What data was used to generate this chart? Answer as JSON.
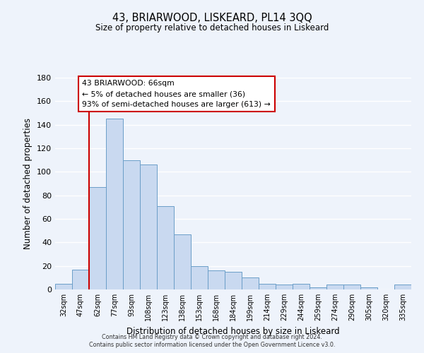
{
  "title": "43, BRIARWOOD, LISKEARD, PL14 3QQ",
  "subtitle": "Size of property relative to detached houses in Liskeard",
  "xlabel": "Distribution of detached houses by size in Liskeard",
  "ylabel": "Number of detached properties",
  "bin_labels": [
    "32sqm",
    "47sqm",
    "62sqm",
    "77sqm",
    "93sqm",
    "108sqm",
    "123sqm",
    "138sqm",
    "153sqm",
    "168sqm",
    "184sqm",
    "199sqm",
    "214sqm",
    "229sqm",
    "244sqm",
    "259sqm",
    "274sqm",
    "290sqm",
    "305sqm",
    "320sqm",
    "335sqm"
  ],
  "bar_heights": [
    5,
    17,
    87,
    145,
    110,
    106,
    71,
    47,
    20,
    16,
    15,
    10,
    5,
    4,
    5,
    2,
    4,
    4,
    2,
    0,
    4
  ],
  "bar_color": "#c9d9f0",
  "bar_edge_color": "#6b9ec8",
  "vline_color": "#cc0000",
  "vline_x_index": 2,
  "ylim": [
    0,
    180
  ],
  "yticks": [
    0,
    20,
    40,
    60,
    80,
    100,
    120,
    140,
    160,
    180
  ],
  "annotation_title": "43 BRIARWOOD: 66sqm",
  "annotation_line1": "← 5% of detached houses are smaller (36)",
  "annotation_line2": "93% of semi-detached houses are larger (613) →",
  "annotation_box_facecolor": "#ffffff",
  "annotation_box_edgecolor": "#cc0000",
  "footer_line1": "Contains HM Land Registry data © Crown copyright and database right 2024.",
  "footer_line2": "Contains public sector information licensed under the Open Government Licence v3.0.",
  "background_color": "#eef3fb",
  "grid_color": "#ffffff"
}
